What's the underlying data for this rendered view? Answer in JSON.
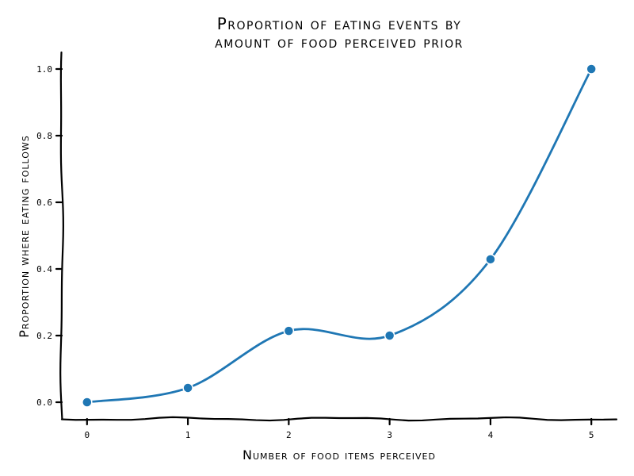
{
  "chart_data": {
    "type": "line",
    "title": [
      "Proportion of eating events by",
      "amount of food perceived prior"
    ],
    "xlabel": "Number of food items perceived",
    "ylabel": "Proportion where eating follows",
    "x": [
      0,
      1,
      2,
      3,
      4,
      5
    ],
    "x_tick_labels": [
      "0",
      "1",
      "2",
      "3",
      "4",
      "5"
    ],
    "xlim": [
      -0.25,
      5.25
    ],
    "ylim": [
      -0.05,
      1.05
    ],
    "y_ticks": [
      0.0,
      0.2,
      0.4,
      0.6,
      0.8,
      1.0
    ],
    "y_tick_labels": [
      "0.0",
      "0.2",
      "0.4",
      "0.6",
      "0.8",
      "1.0"
    ],
    "series": [
      {
        "values": [
          0.0,
          0.043,
          0.214,
          0.2,
          0.429,
          1.0
        ],
        "color": "#1f77b4"
      }
    ],
    "grid": false,
    "legend": "none",
    "style": "xkcd"
  }
}
